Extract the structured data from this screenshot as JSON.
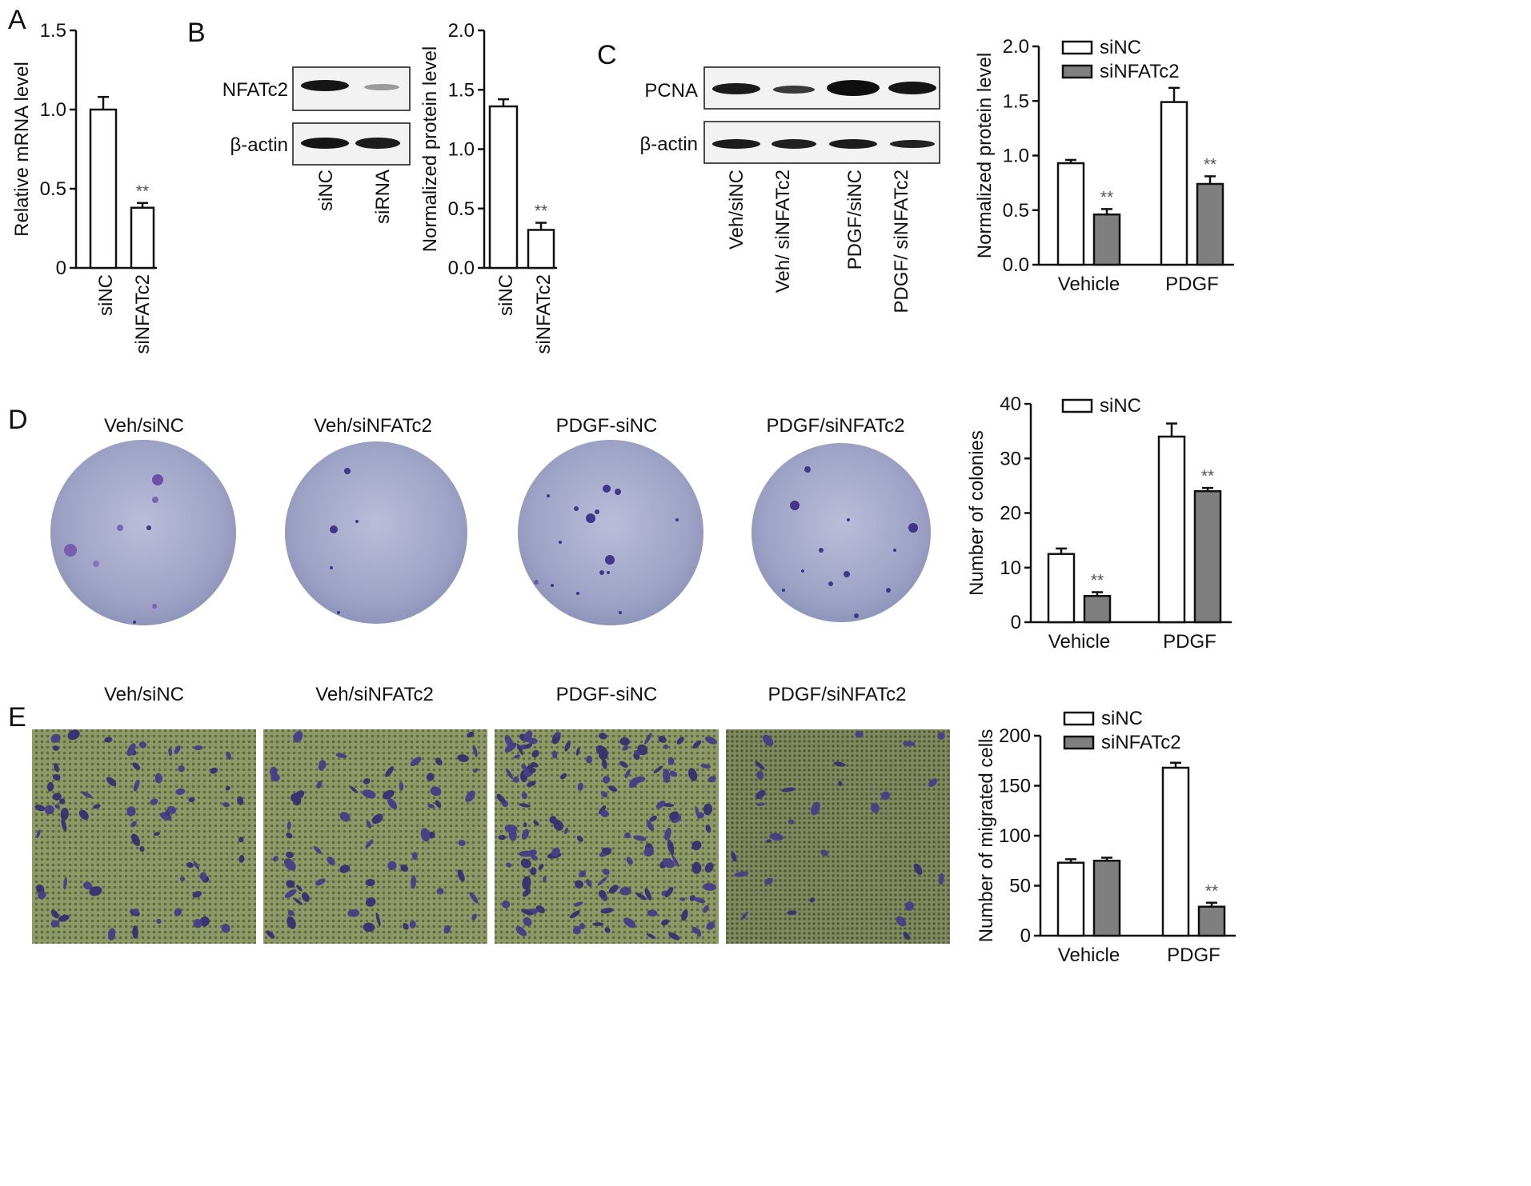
{
  "panels": {
    "A": {
      "letter": "A"
    },
    "B": {
      "letter": "B",
      "blot_rows": [
        "NFATc2",
        "β-actin"
      ],
      "lanes": [
        "siNC",
        "siRNA"
      ]
    },
    "C": {
      "letter": "C",
      "blot_rows": [
        "PCNA",
        "β-actin"
      ],
      "lanes": [
        "Veh/siNC",
        "Veh/ siNFATc2",
        "PDGF/siNC",
        "PDGF/ siNFATc2"
      ]
    },
    "D": {
      "letter": "D",
      "images": [
        "Veh/siNC",
        "Veh/siNFATc2",
        "PDGF-siNC",
        "PDGF/siNFATc2"
      ]
    },
    "E": {
      "letter": "E",
      "images": [
        "Veh/siNC",
        "Veh/siNFATc2",
        "PDGF-siNC",
        "PDGF/siNFATc2"
      ]
    }
  },
  "colors": {
    "siNC": "#ffffff",
    "siNFATc2": "#7f7f7f",
    "axis": "#111111",
    "significance": "#555555",
    "colony_plate": "#9fa3c4",
    "colony_stain": "#3b2f7a",
    "migration_bg": "#8f9a6a",
    "migration_cell": "#3a3470"
  },
  "chart_data": [
    {
      "id": "A",
      "type": "bar",
      "categories": [
        "siNC",
        "siNFATc2"
      ],
      "values": [
        1.0,
        0.38
      ],
      "errors": [
        0.08,
        0.03
      ],
      "fills": [
        "siNC",
        "siNC"
      ],
      "significance": [
        "",
        "**"
      ],
      "ylabel": "Relative mRNA level",
      "ylim": [
        0,
        1.5
      ],
      "yticks": [
        "0",
        "0.5",
        "1.0",
        "1.5"
      ]
    },
    {
      "id": "B",
      "type": "bar",
      "categories": [
        "siNC",
        "siNFATc2"
      ],
      "values": [
        1.36,
        0.32
      ],
      "errors": [
        0.06,
        0.06
      ],
      "fills": [
        "siNC",
        "siNC"
      ],
      "significance": [
        "",
        "**"
      ],
      "ylabel": "Normalized protein level",
      "ylim": [
        0,
        2.0
      ],
      "yticks": [
        "0.0",
        "0.5",
        "1.0",
        "1.5",
        "2.0"
      ]
    },
    {
      "id": "C",
      "type": "bar",
      "categories": [
        "Vehicle",
        "PDGF"
      ],
      "series": [
        {
          "name": "siNC",
          "values": [
            0.93,
            1.49
          ],
          "errors": [
            0.03,
            0.13
          ]
        },
        {
          "name": "siNFATc2",
          "values": [
            0.46,
            0.74
          ],
          "errors": [
            0.05,
            0.07
          ],
          "significance": [
            "**",
            "**"
          ]
        }
      ],
      "ylabel": "Normalized protein level",
      "ylim": [
        0,
        2.0
      ],
      "yticks": [
        "0.0",
        "0.5",
        "1.0",
        "1.5",
        "2.0"
      ],
      "legend": "top-left",
      "legend_entries": [
        "siNC",
        "siNFATc2"
      ]
    },
    {
      "id": "D",
      "type": "bar",
      "categories": [
        "Vehicle",
        "PDGF"
      ],
      "series": [
        {
          "name": "siNC",
          "values": [
            12.5,
            34
          ],
          "errors": [
            1.0,
            2.4
          ]
        },
        {
          "name": "siNFATc2",
          "values": [
            4.8,
            24
          ],
          "errors": [
            0.7,
            0.6
          ],
          "significance": [
            "**",
            "**"
          ]
        }
      ],
      "ylabel": "Number of colonies",
      "ylim": [
        0,
        40
      ],
      "yticks": [
        "0",
        "10",
        "20",
        "30",
        "40"
      ],
      "legend": "top-left",
      "legend_entries": [
        "siNC"
      ]
    },
    {
      "id": "E",
      "type": "bar",
      "categories": [
        "Vehicle",
        "PDGF"
      ],
      "series": [
        {
          "name": "siNC",
          "values": [
            73,
            168
          ],
          "errors": [
            3.5,
            5.0
          ]
        },
        {
          "name": "siNFATc2",
          "values": [
            75,
            29
          ],
          "errors": [
            3.0,
            4.0
          ],
          "significance": [
            "",
            "**"
          ]
        }
      ],
      "ylabel": "Number of migrated cells",
      "ylim": [
        0,
        200
      ],
      "yticks": [
        "0",
        "50",
        "100",
        "150",
        "200"
      ],
      "legend": "top-left",
      "legend_entries": [
        "siNC",
        "siNFATc2"
      ]
    }
  ]
}
